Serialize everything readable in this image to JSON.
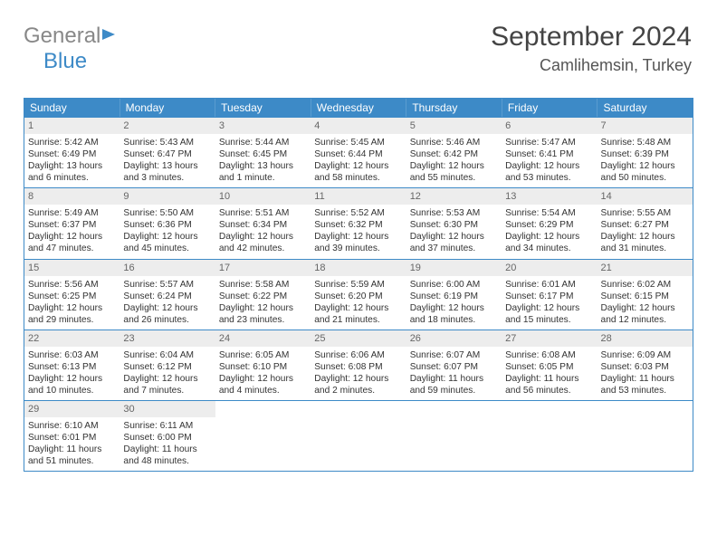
{
  "logo": {
    "word1": "General",
    "word2": "Blue"
  },
  "title": "September 2024",
  "location": "Camlihemsin, Turkey",
  "day_names": [
    "Sunday",
    "Monday",
    "Tuesday",
    "Wednesday",
    "Thursday",
    "Friday",
    "Saturday"
  ],
  "calendar_border_color": "#3d8ac7",
  "header_bg_color": "#3d8ac7",
  "header_text_color": "#ffffff",
  "daynum_bg_color": "#ededed",
  "body_font_size_pt": 8,
  "header_font_size_pt": 9,
  "title_font_size_pt": 22,
  "location_font_size_pt": 14,
  "weeks": [
    [
      {
        "n": "1",
        "sunrise": "5:42 AM",
        "sunset": "6:49 PM",
        "dl": "13 hours and 6 minutes."
      },
      {
        "n": "2",
        "sunrise": "5:43 AM",
        "sunset": "6:47 PM",
        "dl": "13 hours and 3 minutes."
      },
      {
        "n": "3",
        "sunrise": "5:44 AM",
        "sunset": "6:45 PM",
        "dl": "13 hours and 1 minute."
      },
      {
        "n": "4",
        "sunrise": "5:45 AM",
        "sunset": "6:44 PM",
        "dl": "12 hours and 58 minutes."
      },
      {
        "n": "5",
        "sunrise": "5:46 AM",
        "sunset": "6:42 PM",
        "dl": "12 hours and 55 minutes."
      },
      {
        "n": "6",
        "sunrise": "5:47 AM",
        "sunset": "6:41 PM",
        "dl": "12 hours and 53 minutes."
      },
      {
        "n": "7",
        "sunrise": "5:48 AM",
        "sunset": "6:39 PM",
        "dl": "12 hours and 50 minutes."
      }
    ],
    [
      {
        "n": "8",
        "sunrise": "5:49 AM",
        "sunset": "6:37 PM",
        "dl": "12 hours and 47 minutes."
      },
      {
        "n": "9",
        "sunrise": "5:50 AM",
        "sunset": "6:36 PM",
        "dl": "12 hours and 45 minutes."
      },
      {
        "n": "10",
        "sunrise": "5:51 AM",
        "sunset": "6:34 PM",
        "dl": "12 hours and 42 minutes."
      },
      {
        "n": "11",
        "sunrise": "5:52 AM",
        "sunset": "6:32 PM",
        "dl": "12 hours and 39 minutes."
      },
      {
        "n": "12",
        "sunrise": "5:53 AM",
        "sunset": "6:30 PM",
        "dl": "12 hours and 37 minutes."
      },
      {
        "n": "13",
        "sunrise": "5:54 AM",
        "sunset": "6:29 PM",
        "dl": "12 hours and 34 minutes."
      },
      {
        "n": "14",
        "sunrise": "5:55 AM",
        "sunset": "6:27 PM",
        "dl": "12 hours and 31 minutes."
      }
    ],
    [
      {
        "n": "15",
        "sunrise": "5:56 AM",
        "sunset": "6:25 PM",
        "dl": "12 hours and 29 minutes."
      },
      {
        "n": "16",
        "sunrise": "5:57 AM",
        "sunset": "6:24 PM",
        "dl": "12 hours and 26 minutes."
      },
      {
        "n": "17",
        "sunrise": "5:58 AM",
        "sunset": "6:22 PM",
        "dl": "12 hours and 23 minutes."
      },
      {
        "n": "18",
        "sunrise": "5:59 AM",
        "sunset": "6:20 PM",
        "dl": "12 hours and 21 minutes."
      },
      {
        "n": "19",
        "sunrise": "6:00 AM",
        "sunset": "6:19 PM",
        "dl": "12 hours and 18 minutes."
      },
      {
        "n": "20",
        "sunrise": "6:01 AM",
        "sunset": "6:17 PM",
        "dl": "12 hours and 15 minutes."
      },
      {
        "n": "21",
        "sunrise": "6:02 AM",
        "sunset": "6:15 PM",
        "dl": "12 hours and 12 minutes."
      }
    ],
    [
      {
        "n": "22",
        "sunrise": "6:03 AM",
        "sunset": "6:13 PM",
        "dl": "12 hours and 10 minutes."
      },
      {
        "n": "23",
        "sunrise": "6:04 AM",
        "sunset": "6:12 PM",
        "dl": "12 hours and 7 minutes."
      },
      {
        "n": "24",
        "sunrise": "6:05 AM",
        "sunset": "6:10 PM",
        "dl": "12 hours and 4 minutes."
      },
      {
        "n": "25",
        "sunrise": "6:06 AM",
        "sunset": "6:08 PM",
        "dl": "12 hours and 2 minutes."
      },
      {
        "n": "26",
        "sunrise": "6:07 AM",
        "sunset": "6:07 PM",
        "dl": "11 hours and 59 minutes."
      },
      {
        "n": "27",
        "sunrise": "6:08 AM",
        "sunset": "6:05 PM",
        "dl": "11 hours and 56 minutes."
      },
      {
        "n": "28",
        "sunrise": "6:09 AM",
        "sunset": "6:03 PM",
        "dl": "11 hours and 53 minutes."
      }
    ],
    [
      {
        "n": "29",
        "sunrise": "6:10 AM",
        "sunset": "6:01 PM",
        "dl": "11 hours and 51 minutes."
      },
      {
        "n": "30",
        "sunrise": "6:11 AM",
        "sunset": "6:00 PM",
        "dl": "11 hours and 48 minutes."
      },
      null,
      null,
      null,
      null,
      null
    ]
  ]
}
